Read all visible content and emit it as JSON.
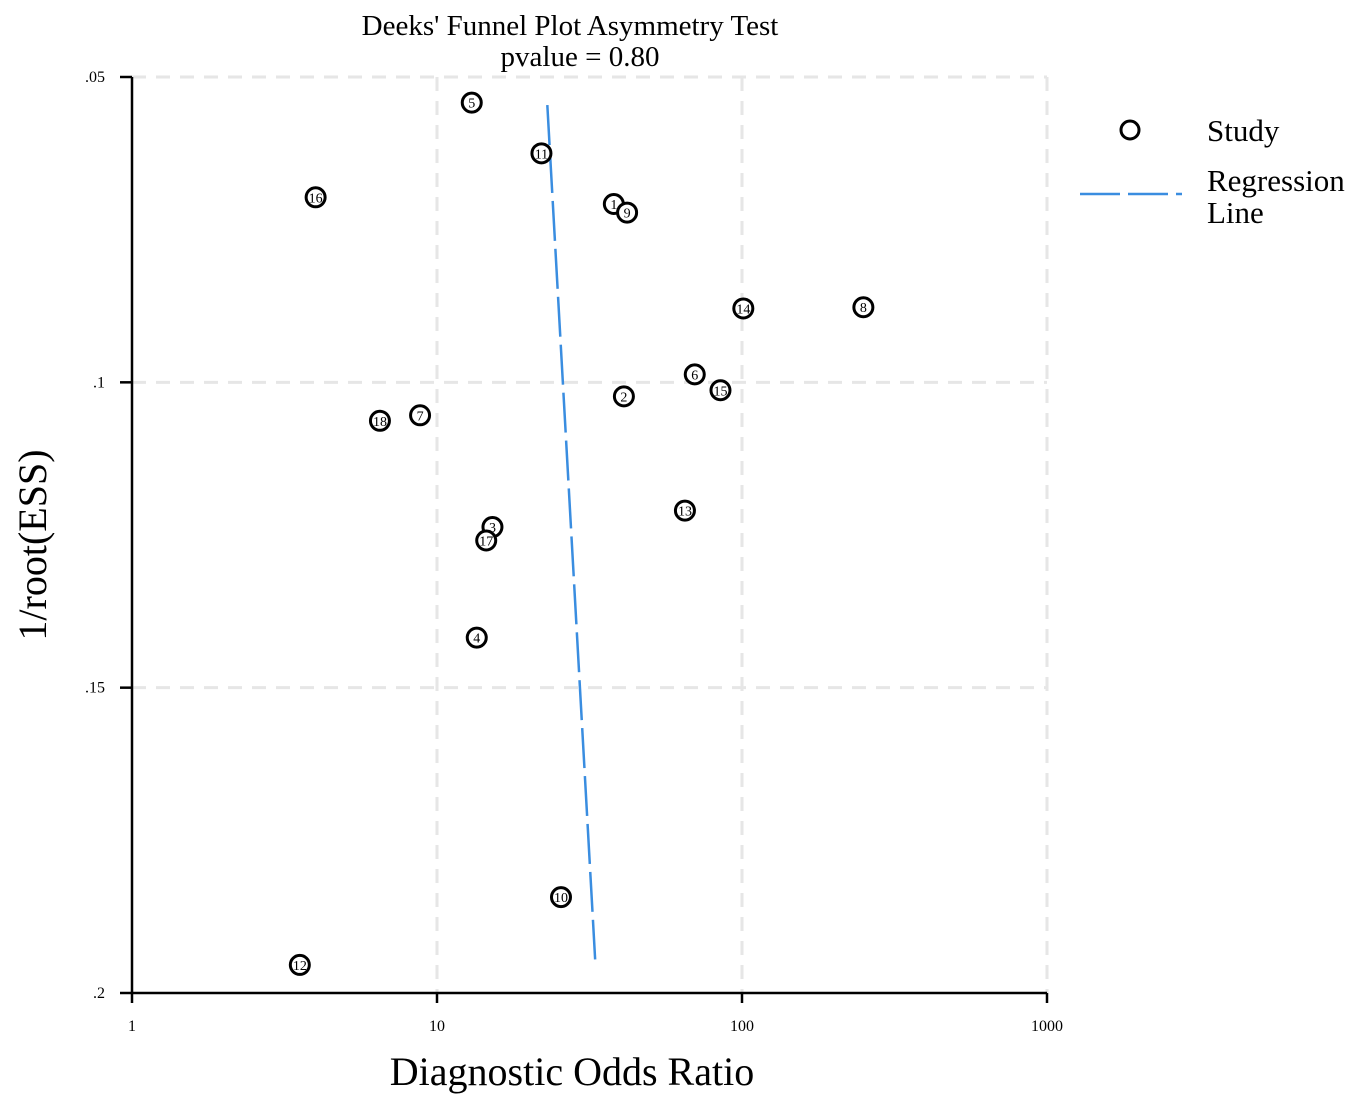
{
  "chart_data": {
    "type": "scatter",
    "title": "Deeks' Funnel Plot Asymmetry Test",
    "subtitle": "pvalue =   0.80",
    "xlabel": "Diagnostic Odds Ratio",
    "ylabel": "1/root(ESS)",
    "x_scale": "log",
    "xlim": [
      1,
      1000
    ],
    "ylim": [
      0.05,
      0.2
    ],
    "y_reversed": true,
    "x_ticks": [
      1,
      10,
      100,
      1000
    ],
    "x_tick_labels": [
      "1",
      "10",
      "100",
      "1000"
    ],
    "y_ticks": [
      0.05,
      0.1,
      0.15,
      0.2
    ],
    "y_tick_labels": [
      ".05",
      ".1",
      ".15",
      ".2"
    ],
    "grid": true,
    "legend_position": "top-right",
    "legend": [
      {
        "name": "Study",
        "kind": "marker",
        "icon": "circle-marker-icon"
      },
      {
        "name": "Regression\nLine",
        "kind": "line",
        "color": "#3a8de0"
      }
    ],
    "series": [
      {
        "name": "Study",
        "points": [
          {
            "label": "1",
            "x": 38,
            "y": 0.0708
          },
          {
            "label": "2",
            "x": 41,
            "y": 0.1023
          },
          {
            "label": "3",
            "x": 15.2,
            "y": 0.1237
          },
          {
            "label": "4",
            "x": 13.5,
            "y": 0.1418
          },
          {
            "label": "5",
            "x": 13,
            "y": 0.0542
          },
          {
            "label": "6",
            "x": 70,
            "y": 0.0987
          },
          {
            "label": "7",
            "x": 8.8,
            "y": 0.1054
          },
          {
            "label": "8",
            "x": 250,
            "y": 0.0877
          },
          {
            "label": "9",
            "x": 42,
            "y": 0.0722
          },
          {
            "label": "10",
            "x": 25.5,
            "y": 0.1843
          },
          {
            "label": "11",
            "x": 22,
            "y": 0.0625
          },
          {
            "label": "12",
            "x": 3.55,
            "y": 0.1954
          },
          {
            "label": "13",
            "x": 65,
            "y": 0.121
          },
          {
            "label": "14",
            "x": 101,
            "y": 0.0879
          },
          {
            "label": "15",
            "x": 85,
            "y": 0.1013
          },
          {
            "label": "16",
            "x": 4.0,
            "y": 0.0697
          },
          {
            "label": "17",
            "x": 14.5,
            "y": 0.1259
          },
          {
            "label": "18",
            "x": 6.5,
            "y": 0.1063
          }
        ]
      },
      {
        "name": "Regression Line",
        "line": [
          {
            "x": 23,
            "y": 0.0546
          },
          {
            "x": 33,
            "y": 0.1945
          }
        ],
        "color": "#3a8de0"
      }
    ]
  }
}
